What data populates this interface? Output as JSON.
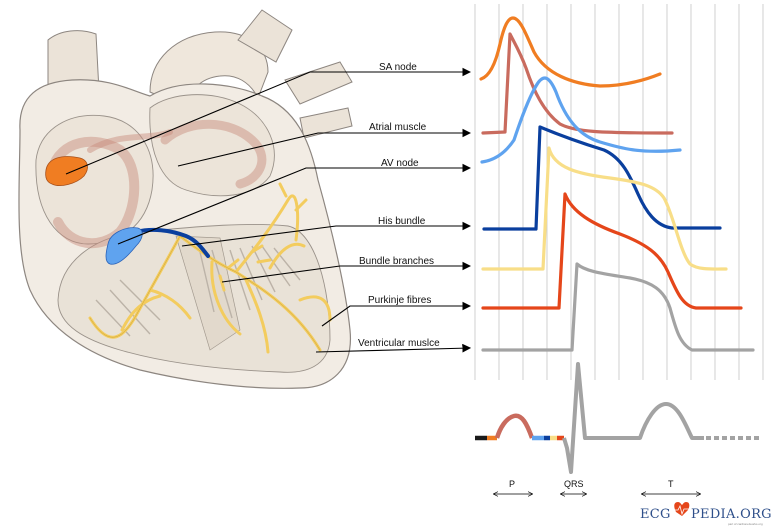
{
  "labels": {
    "sa_node": "SA node",
    "atrial_muscle": "Atrial muscle",
    "av_node": "AV node",
    "his_bundle": "His bundle",
    "bundle_branches": "Bundle branches",
    "purkinje_fibres": "Purkinje fibres",
    "ventricular_muscle": "Ventricular muslce"
  },
  "ecg_intervals": {
    "p": "P",
    "qrs": "QRS",
    "t": "T"
  },
  "logo": {
    "text_left": "ECG",
    "text_right": "PEDIA.ORG",
    "tagline": "part of cardionetworks.org"
  },
  "colors": {
    "sa_node": "#f07d22",
    "atrial_muscle": "#c96b5e",
    "av_node": "#5fa3ef",
    "his_bundle": "#0a3f9e",
    "bundle_branches": "#f8de88",
    "purkinje_fibres": "#e5461a",
    "ventricular_muscle": "#a3a3a3",
    "conduction_system": "#f3cc5e"
  }
}
